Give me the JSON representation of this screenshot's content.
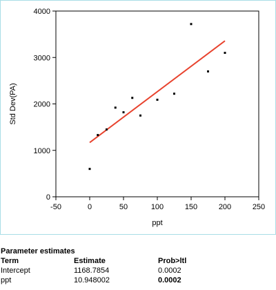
{
  "chart_data": {
    "type": "scatter",
    "xlabel": "ppt",
    "ylabel": "Std Dev(PA)",
    "xlim": [
      -50,
      250
    ],
    "ylim": [
      0,
      4000
    ],
    "x_ticks": [
      "-50",
      "0",
      "50",
      "100",
      "150",
      "200",
      "250"
    ],
    "y_ticks": [
      "0",
      "1000",
      "2000",
      "3000",
      "4000"
    ],
    "grid": false,
    "points": [
      {
        "x": 0,
        "y": 600
      },
      {
        "x": 12,
        "y": 1330
      },
      {
        "x": 25,
        "y": 1450
      },
      {
        "x": 38,
        "y": 1920
      },
      {
        "x": 50,
        "y": 1820
      },
      {
        "x": 63,
        "y": 2130
      },
      {
        "x": 75,
        "y": 1750
      },
      {
        "x": 100,
        "y": 2090
      },
      {
        "x": 125,
        "y": 2220
      },
      {
        "x": 150,
        "y": 3720
      },
      {
        "x": 175,
        "y": 2700
      },
      {
        "x": 200,
        "y": 3100
      }
    ],
    "fit_line": {
      "x": [
        0,
        200
      ],
      "y": [
        1168.7854,
        3358.39
      ],
      "color": "#e8432e"
    },
    "point_color": "#000000"
  },
  "parameter_estimates": {
    "title": "Parameter estimates",
    "headers": [
      "Term",
      "Estimate",
      "Prob>ltl"
    ],
    "rows": [
      {
        "term": "Intercept",
        "estimate": "1168.7854",
        "prob": "0.0002",
        "prob_bold": false
      },
      {
        "term": "ppt",
        "estimate": "10.948002",
        "prob": "0.0002",
        "prob_bold": true
      }
    ]
  }
}
